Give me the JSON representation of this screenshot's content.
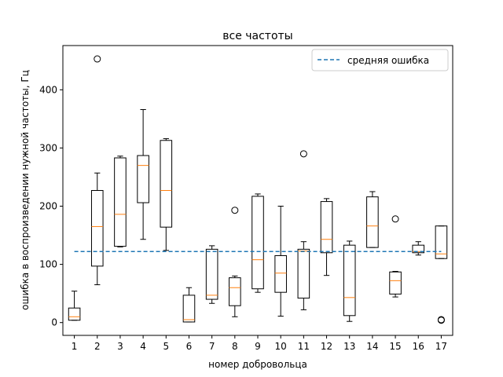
{
  "chart_data": {
    "type": "boxplot",
    "title": "все частоты",
    "xlabel": "номер добровольца",
    "ylabel": "ошибка в воспроизведении нужной частоты, Гц",
    "categories": [
      "1",
      "2",
      "3",
      "4",
      "5",
      "6",
      "7",
      "8",
      "9",
      "10",
      "11",
      "12",
      "13",
      "14",
      "15",
      "16",
      "17"
    ],
    "ylim": [
      -22,
      476
    ],
    "yticks": [
      0,
      100,
      200,
      300,
      400
    ],
    "boxes": [
      {
        "label": "1",
        "whislo": 4,
        "q1": 4,
        "med": 10,
        "q3": 25,
        "whishi": 54,
        "fliers": []
      },
      {
        "label": "2",
        "whislo": 65,
        "q1": 97,
        "med": 165,
        "q3": 227,
        "whishi": 257,
        "fliers": [
          453
        ]
      },
      {
        "label": "3",
        "whislo": 130,
        "q1": 131,
        "med": 186,
        "q3": 283,
        "whishi": 286,
        "fliers": []
      },
      {
        "label": "4",
        "whislo": 143,
        "q1": 206,
        "med": 270,
        "q3": 287,
        "whishi": 366,
        "fliers": []
      },
      {
        "label": "5",
        "whislo": 124,
        "q1": 164,
        "med": 227,
        "q3": 313,
        "whishi": 316,
        "fliers": []
      },
      {
        "label": "6",
        "whislo": 1,
        "q1": 1,
        "med": 5,
        "q3": 47,
        "whishi": 60,
        "fliers": []
      },
      {
        "label": "7",
        "whislo": 33,
        "q1": 40,
        "med": 47,
        "q3": 126,
        "whishi": 132,
        "fliers": []
      },
      {
        "label": "8",
        "whislo": 10,
        "q1": 29,
        "med": 60,
        "q3": 77,
        "whishi": 80,
        "fliers": [
          193
        ]
      },
      {
        "label": "9",
        "whislo": 52,
        "q1": 58,
        "med": 108,
        "q3": 217,
        "whishi": 221,
        "fliers": []
      },
      {
        "label": "10",
        "whislo": 11,
        "q1": 52,
        "med": 85,
        "q3": 115,
        "whishi": 200,
        "fliers": []
      },
      {
        "label": "11",
        "whislo": 22,
        "q1": 42,
        "med": 123,
        "q3": 126,
        "whishi": 139,
        "fliers": [
          290
        ]
      },
      {
        "label": "12",
        "whislo": 81,
        "q1": 120,
        "med": 143,
        "q3": 208,
        "whishi": 213,
        "fliers": []
      },
      {
        "label": "13",
        "whislo": 2,
        "q1": 12,
        "med": 43,
        "q3": 133,
        "whishi": 140,
        "fliers": []
      },
      {
        "label": "14",
        "whislo": 129,
        "q1": 129,
        "med": 166,
        "q3": 216,
        "whishi": 225,
        "fliers": []
      },
      {
        "label": "15",
        "whislo": 44,
        "q1": 49,
        "med": 72,
        "q3": 87,
        "whishi": 88,
        "fliers": [
          178
        ]
      },
      {
        "label": "16",
        "whislo": 116,
        "q1": 120,
        "med": 122,
        "q3": 133,
        "whishi": 139,
        "fliers": []
      },
      {
        "label": "17",
        "whislo": 110,
        "q1": 110,
        "med": 118,
        "q3": 166,
        "whishi": 166,
        "fliers": [
          4,
          5
        ]
      }
    ],
    "reference_line": {
      "name": "средняя ошибка",
      "value": 122,
      "style": "dashed",
      "color": "#1f77b4"
    },
    "legend": {
      "placement": "top-right"
    },
    "grid": false,
    "colors": {
      "box": "#000000",
      "median": "#ff7f0e",
      "mean_line": "#1f77b4"
    }
  }
}
